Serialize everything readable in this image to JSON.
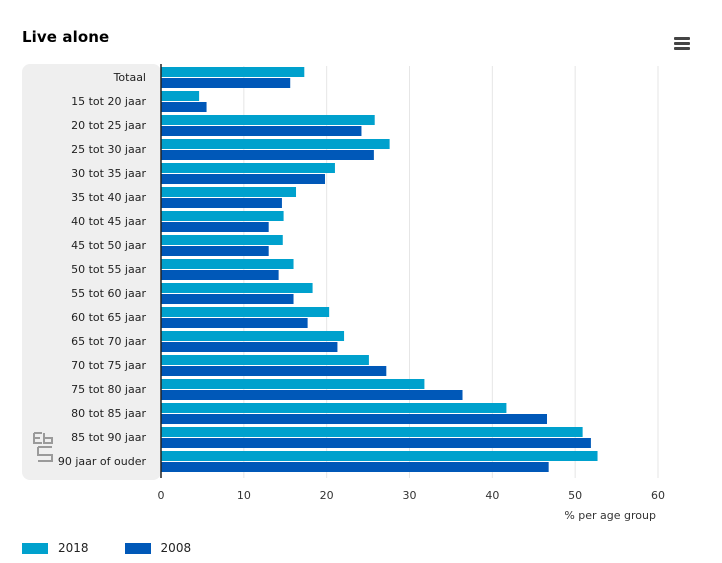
{
  "header": {
    "title": "Live alone"
  },
  "colors": {
    "series_2018": "#00a1cd",
    "series_2008": "#0058b8",
    "plot_band": "#efefef",
    "gridline": "#e6e6e6",
    "axis_line": "#222222"
  },
  "icons": {
    "menu": "hamburger-menu-icon",
    "watermark": "cbs-logo-icon"
  },
  "chart_data": {
    "type": "bar",
    "orientation": "horizontal",
    "title": "Live alone",
    "xlabel": "% per age group",
    "ylabel": "",
    "xlim": [
      0,
      60
    ],
    "x_ticks": [
      0,
      10,
      20,
      30,
      40,
      50,
      60
    ],
    "grid": true,
    "legend_position": "bottom-left",
    "categories": [
      "Totaal",
      "15 tot 20 jaar",
      "20 tot 25 jaar",
      "25 tot 30 jaar",
      "30 tot 35 jaar",
      "35 tot 40 jaar",
      "40 tot 45 jaar",
      "45 tot 50 jaar",
      "50 tot 55 jaar",
      "55 tot 60 jaar",
      "60 tot 65 jaar",
      "65 tot 70 jaar",
      "70 tot 75 jaar",
      "75 tot 80 jaar",
      "80 tot 85 jaar",
      "85 tot 90 jaar",
      "90 jaar of ouder"
    ],
    "series": [
      {
        "name": "2018",
        "values": [
          17.3,
          4.6,
          25.8,
          27.6,
          21.0,
          16.3,
          14.8,
          14.7,
          16.0,
          18.3,
          20.3,
          22.1,
          25.1,
          31.8,
          41.7,
          50.9,
          52.7
        ]
      },
      {
        "name": "2008",
        "values": [
          15.6,
          5.5,
          24.2,
          25.7,
          19.8,
          14.6,
          13.0,
          13.0,
          14.2,
          16.0,
          17.7,
          21.3,
          27.2,
          36.4,
          46.6,
          51.9,
          46.8
        ]
      }
    ]
  }
}
